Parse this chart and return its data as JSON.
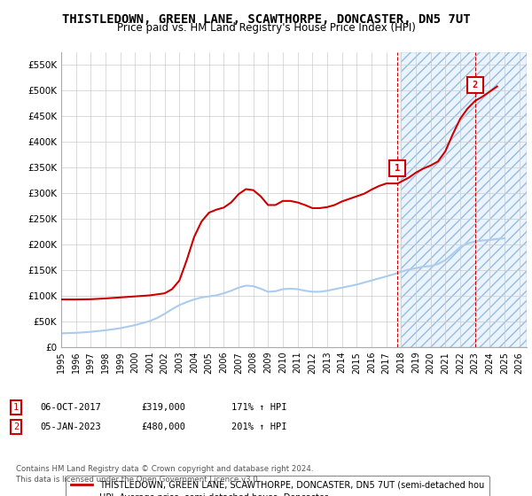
{
  "title": "THISTLEDOWN, GREEN LANE, SCAWTHORPE, DONCASTER, DN5 7UT",
  "subtitle": "Price paid vs. HM Land Registry's House Price Index (HPI)",
  "title_fontsize": 10,
  "subtitle_fontsize": 8.5,
  "ylim": [
    0,
    575000
  ],
  "yticks": [
    0,
    50000,
    100000,
    150000,
    200000,
    250000,
    300000,
    350000,
    400000,
    450000,
    500000,
    550000
  ],
  "ytick_labels": [
    "£0",
    "£50K",
    "£100K",
    "£150K",
    "£200K",
    "£250K",
    "£300K",
    "£350K",
    "£400K",
    "£450K",
    "£500K",
    "£550K"
  ],
  "background_color": "#ffffff",
  "plot_bg_color": "#ffffff",
  "grid_color": "#cccccc",
  "hpi_color": "#aaccee",
  "price_color": "#cc0000",
  "dashed_color": "#cc0000",
  "marker1_date_num": 2017.77,
  "marker2_date_num": 2023.01,
  "marker1_price": 319000,
  "marker2_price": 480000,
  "marker1_label": "1",
  "marker2_label": "2",
  "legend_label_price": "THISTLEDOWN, GREEN LANE, SCAWTHORPE, DONCASTER, DN5 7UT (semi-detached hou",
  "legend_label_hpi": "HPI: Average price, semi-detached house, Doncaster",
  "footer1": "Contains HM Land Registry data © Crown copyright and database right 2024.",
  "footer2": "This data is licensed under the Open Government Licence v3.0.",
  "hpi_data": [
    [
      1995.0,
      27000
    ],
    [
      1995.5,
      27500
    ],
    [
      1996.0,
      28000
    ],
    [
      1996.5,
      28800
    ],
    [
      1997.0,
      30000
    ],
    [
      1997.5,
      31500
    ],
    [
      1998.0,
      33000
    ],
    [
      1998.5,
      35000
    ],
    [
      1999.0,
      37000
    ],
    [
      1999.5,
      40000
    ],
    [
      2000.0,
      43000
    ],
    [
      2000.5,
      47000
    ],
    [
      2001.0,
      51000
    ],
    [
      2001.5,
      57000
    ],
    [
      2002.0,
      65000
    ],
    [
      2002.5,
      74000
    ],
    [
      2003.0,
      82000
    ],
    [
      2003.5,
      88000
    ],
    [
      2004.0,
      93000
    ],
    [
      2004.5,
      97000
    ],
    [
      2005.0,
      99000
    ],
    [
      2005.5,
      101000
    ],
    [
      2006.0,
      105000
    ],
    [
      2006.5,
      110000
    ],
    [
      2007.0,
      116000
    ],
    [
      2007.5,
      120000
    ],
    [
      2008.0,
      119000
    ],
    [
      2008.5,
      114000
    ],
    [
      2009.0,
      108000
    ],
    [
      2009.5,
      109000
    ],
    [
      2010.0,
      113000
    ],
    [
      2010.5,
      114000
    ],
    [
      2011.0,
      113000
    ],
    [
      2011.5,
      110000
    ],
    [
      2012.0,
      108000
    ],
    [
      2012.5,
      108000
    ],
    [
      2013.0,
      110000
    ],
    [
      2013.5,
      113000
    ],
    [
      2014.0,
      116000
    ],
    [
      2014.5,
      119000
    ],
    [
      2015.0,
      122000
    ],
    [
      2015.5,
      126000
    ],
    [
      2016.0,
      130000
    ],
    [
      2016.5,
      134000
    ],
    [
      2017.0,
      138000
    ],
    [
      2017.5,
      142000
    ],
    [
      2018.0,
      147000
    ],
    [
      2018.5,
      151000
    ],
    [
      2019.0,
      154000
    ],
    [
      2019.5,
      157000
    ],
    [
      2020.0,
      158000
    ],
    [
      2020.5,
      162000
    ],
    [
      2021.0,
      170000
    ],
    [
      2021.5,
      182000
    ],
    [
      2022.0,
      195000
    ],
    [
      2022.5,
      202000
    ],
    [
      2023.0,
      206000
    ],
    [
      2023.5,
      208000
    ],
    [
      2024.0,
      209000
    ],
    [
      2024.5,
      211000
    ],
    [
      2025.0,
      212000
    ]
  ],
  "price_data": [
    [
      1995.0,
      93000
    ],
    [
      1996.0,
      93000
    ],
    [
      1997.0,
      93500
    ],
    [
      1998.0,
      95000
    ],
    [
      1999.0,
      97000
    ],
    [
      2000.0,
      99000
    ],
    [
      2001.0,
      101000
    ],
    [
      2002.0,
      105000
    ],
    [
      2002.5,
      113000
    ],
    [
      2003.0,
      130000
    ],
    [
      2003.5,
      170000
    ],
    [
      2004.0,
      215000
    ],
    [
      2004.5,
      245000
    ],
    [
      2005.0,
      262000
    ],
    [
      2005.5,
      268000
    ],
    [
      2006.0,
      272000
    ],
    [
      2006.5,
      282000
    ],
    [
      2007.0,
      298000
    ],
    [
      2007.5,
      308000
    ],
    [
      2008.0,
      306000
    ],
    [
      2008.5,
      294000
    ],
    [
      2009.0,
      277000
    ],
    [
      2009.5,
      277000
    ],
    [
      2010.0,
      285000
    ],
    [
      2010.5,
      285000
    ],
    [
      2011.0,
      282000
    ],
    [
      2011.5,
      277000
    ],
    [
      2012.0,
      271000
    ],
    [
      2012.5,
      271000
    ],
    [
      2013.0,
      273000
    ],
    [
      2013.5,
      277000
    ],
    [
      2014.0,
      284000
    ],
    [
      2014.5,
      289000
    ],
    [
      2015.0,
      294000
    ],
    [
      2015.5,
      299000
    ],
    [
      2016.0,
      307000
    ],
    [
      2016.5,
      314000
    ],
    [
      2017.0,
      319000
    ],
    [
      2017.77,
      319000
    ],
    [
      2018.5,
      330000
    ],
    [
      2019.0,
      340000
    ],
    [
      2019.5,
      348000
    ],
    [
      2020.0,
      354000
    ],
    [
      2020.5,
      362000
    ],
    [
      2021.0,
      382000
    ],
    [
      2021.5,
      415000
    ],
    [
      2022.0,
      445000
    ],
    [
      2022.5,
      465000
    ],
    [
      2023.01,
      480000
    ],
    [
      2023.5,
      488000
    ],
    [
      2024.0,
      498000
    ],
    [
      2024.5,
      508000
    ]
  ],
  "xlim": [
    1995.0,
    2026.5
  ],
  "xticks": [
    1995,
    1996,
    1997,
    1998,
    1999,
    2000,
    2001,
    2002,
    2003,
    2004,
    2005,
    2006,
    2007,
    2008,
    2009,
    2010,
    2011,
    2012,
    2013,
    2014,
    2015,
    2016,
    2017,
    2018,
    2019,
    2020,
    2021,
    2022,
    2023,
    2024,
    2025,
    2026
  ],
  "hatched_region_start": 2018.0,
  "hatched_region_end": 2026.5
}
